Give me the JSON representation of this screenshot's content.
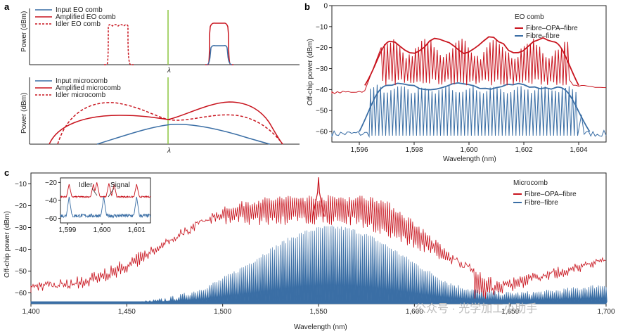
{
  "colors": {
    "red": "#c8141e",
    "blue": "#3a6ea5",
    "green": "#8cc63f",
    "axis": "#222222",
    "watermark": "#b8b8b8"
  },
  "chart_data": [
    {
      "panel": "a",
      "type": "line",
      "title": "",
      "subplots": [
        {
          "ylabel": "Power (dBm)",
          "xlabel": "λ",
          "legend": [
            "Input EO comb",
            "Amplified EO comb",
            "Idler EO comb"
          ],
          "series": [
            {
              "name": "Input EO comb",
              "style": "solid",
              "color": "blue"
            },
            {
              "name": "Amplified EO comb",
              "style": "solid",
              "color": "red"
            },
            {
              "name": "Idler EO comb",
              "style": "dashed",
              "color": "red"
            }
          ]
        },
        {
          "ylabel": "Power (dBm)",
          "xlabel": "λ",
          "legend": [
            "Input microcomb",
            "Amplified microcomb",
            "Idler microcomb"
          ],
          "series": [
            {
              "name": "Input microcomb",
              "style": "solid",
              "color": "blue"
            },
            {
              "name": "Amplified microcomb",
              "style": "solid",
              "color": "red"
            },
            {
              "name": "Idler microcomb",
              "style": "dashed",
              "color": "red"
            }
          ]
        }
      ]
    },
    {
      "panel": "b",
      "type": "line",
      "title": "EO comb",
      "xlabel": "Wavelength (nm)",
      "ylabel": "Off-chip power (dBm)",
      "xlim": [
        1595,
        1605
      ],
      "ylim": [
        -65,
        0
      ],
      "xticks": [
        1596,
        1598,
        1600,
        1602,
        1604
      ],
      "xtick_labels": [
        "1,596",
        "1,598",
        "1,600",
        "1,602",
        "1,604"
      ],
      "yticks": [
        0,
        -10,
        -20,
        -30,
        -40,
        -50,
        -60
      ],
      "ytick_labels": [
        "0",
        "−10",
        "−20",
        "−30",
        "−40",
        "−50",
        "−60"
      ],
      "series": [
        {
          "name": "Fibre–OPA–fibre",
          "color": "red",
          "floor": -41,
          "comb_top": -19,
          "comb_span": [
            1596.8,
            1603.6
          ],
          "lines": 60
        },
        {
          "name": "Fibre–fibre",
          "color": "blue",
          "floor": -62,
          "comb_top": -39,
          "comb_span": [
            1596.4,
            1603.9
          ],
          "lines": 60
        }
      ]
    },
    {
      "panel": "c",
      "type": "line",
      "title": "Microcomb",
      "xlabel": "Wavelength (nm)",
      "ylabel": "Off-chip power (dBm)",
      "xlim": [
        1400,
        1700
      ],
      "ylim": [
        -65,
        -5
      ],
      "xticks": [
        1400,
        1450,
        1500,
        1550,
        1600,
        1650,
        1700
      ],
      "xtick_labels": [
        "1,400",
        "1,450",
        "1,500",
        "1,550",
        "1,600",
        "1,650",
        "1,700"
      ],
      "yticks": [
        -10,
        -20,
        -30,
        -40,
        -50,
        -60
      ],
      "ytick_labels": [
        "−10",
        "−20",
        "−30",
        "−40",
        "−50",
        "−60"
      ],
      "series": [
        {
          "name": "Fibre–OPA–fibre",
          "color": "red",
          "pump_peak": -7,
          "pump_wavelength": 1550
        },
        {
          "name": "Fibre–fibre",
          "color": "blue",
          "peak": -30,
          "peak_wavelength": 1557
        }
      ],
      "inset": {
        "xlim": [
          1598.8,
          1601.4
        ],
        "ylim": [
          -65,
          -15
        ],
        "xticks": [
          1599,
          1600,
          1601
        ],
        "xtick_labels": [
          "1,599",
          "1,600",
          "1,601"
        ],
        "yticks": [
          -20,
          -40,
          -60
        ],
        "ytick_labels": [
          "−20",
          "−40",
          "−60"
        ],
        "annotations": [
          "Idler",
          "Signal"
        ]
      }
    }
  ],
  "labels": {
    "panel_a": "a",
    "panel_b": "b",
    "panel_c": "c",
    "lambda": "λ",
    "power": "Power (dBm)",
    "legend_a1_1": "Input EO comb",
    "legend_a1_2": "Amplified EO comb",
    "legend_a1_3": "Idler EO comb",
    "legend_a2_1": "Input microcomb",
    "legend_a2_2": "Amplified microcomb",
    "legend_a2_3": "Idler microcomb",
    "b_title": "EO comb",
    "b_leg1": "Fibre–OPA–fibre",
    "b_leg2": "Fibre–fibre",
    "c_title": "Microcomb",
    "c_leg1": "Fibre–OPA–fibre",
    "c_leg2": "Fibre–fibre",
    "wavelength": "Wavelength (nm)",
    "offchip": "Off-chip power (dBm)",
    "idler": "Idler",
    "signal": "Signal",
    "watermark": "公众号 · 光学加工小助手"
  }
}
